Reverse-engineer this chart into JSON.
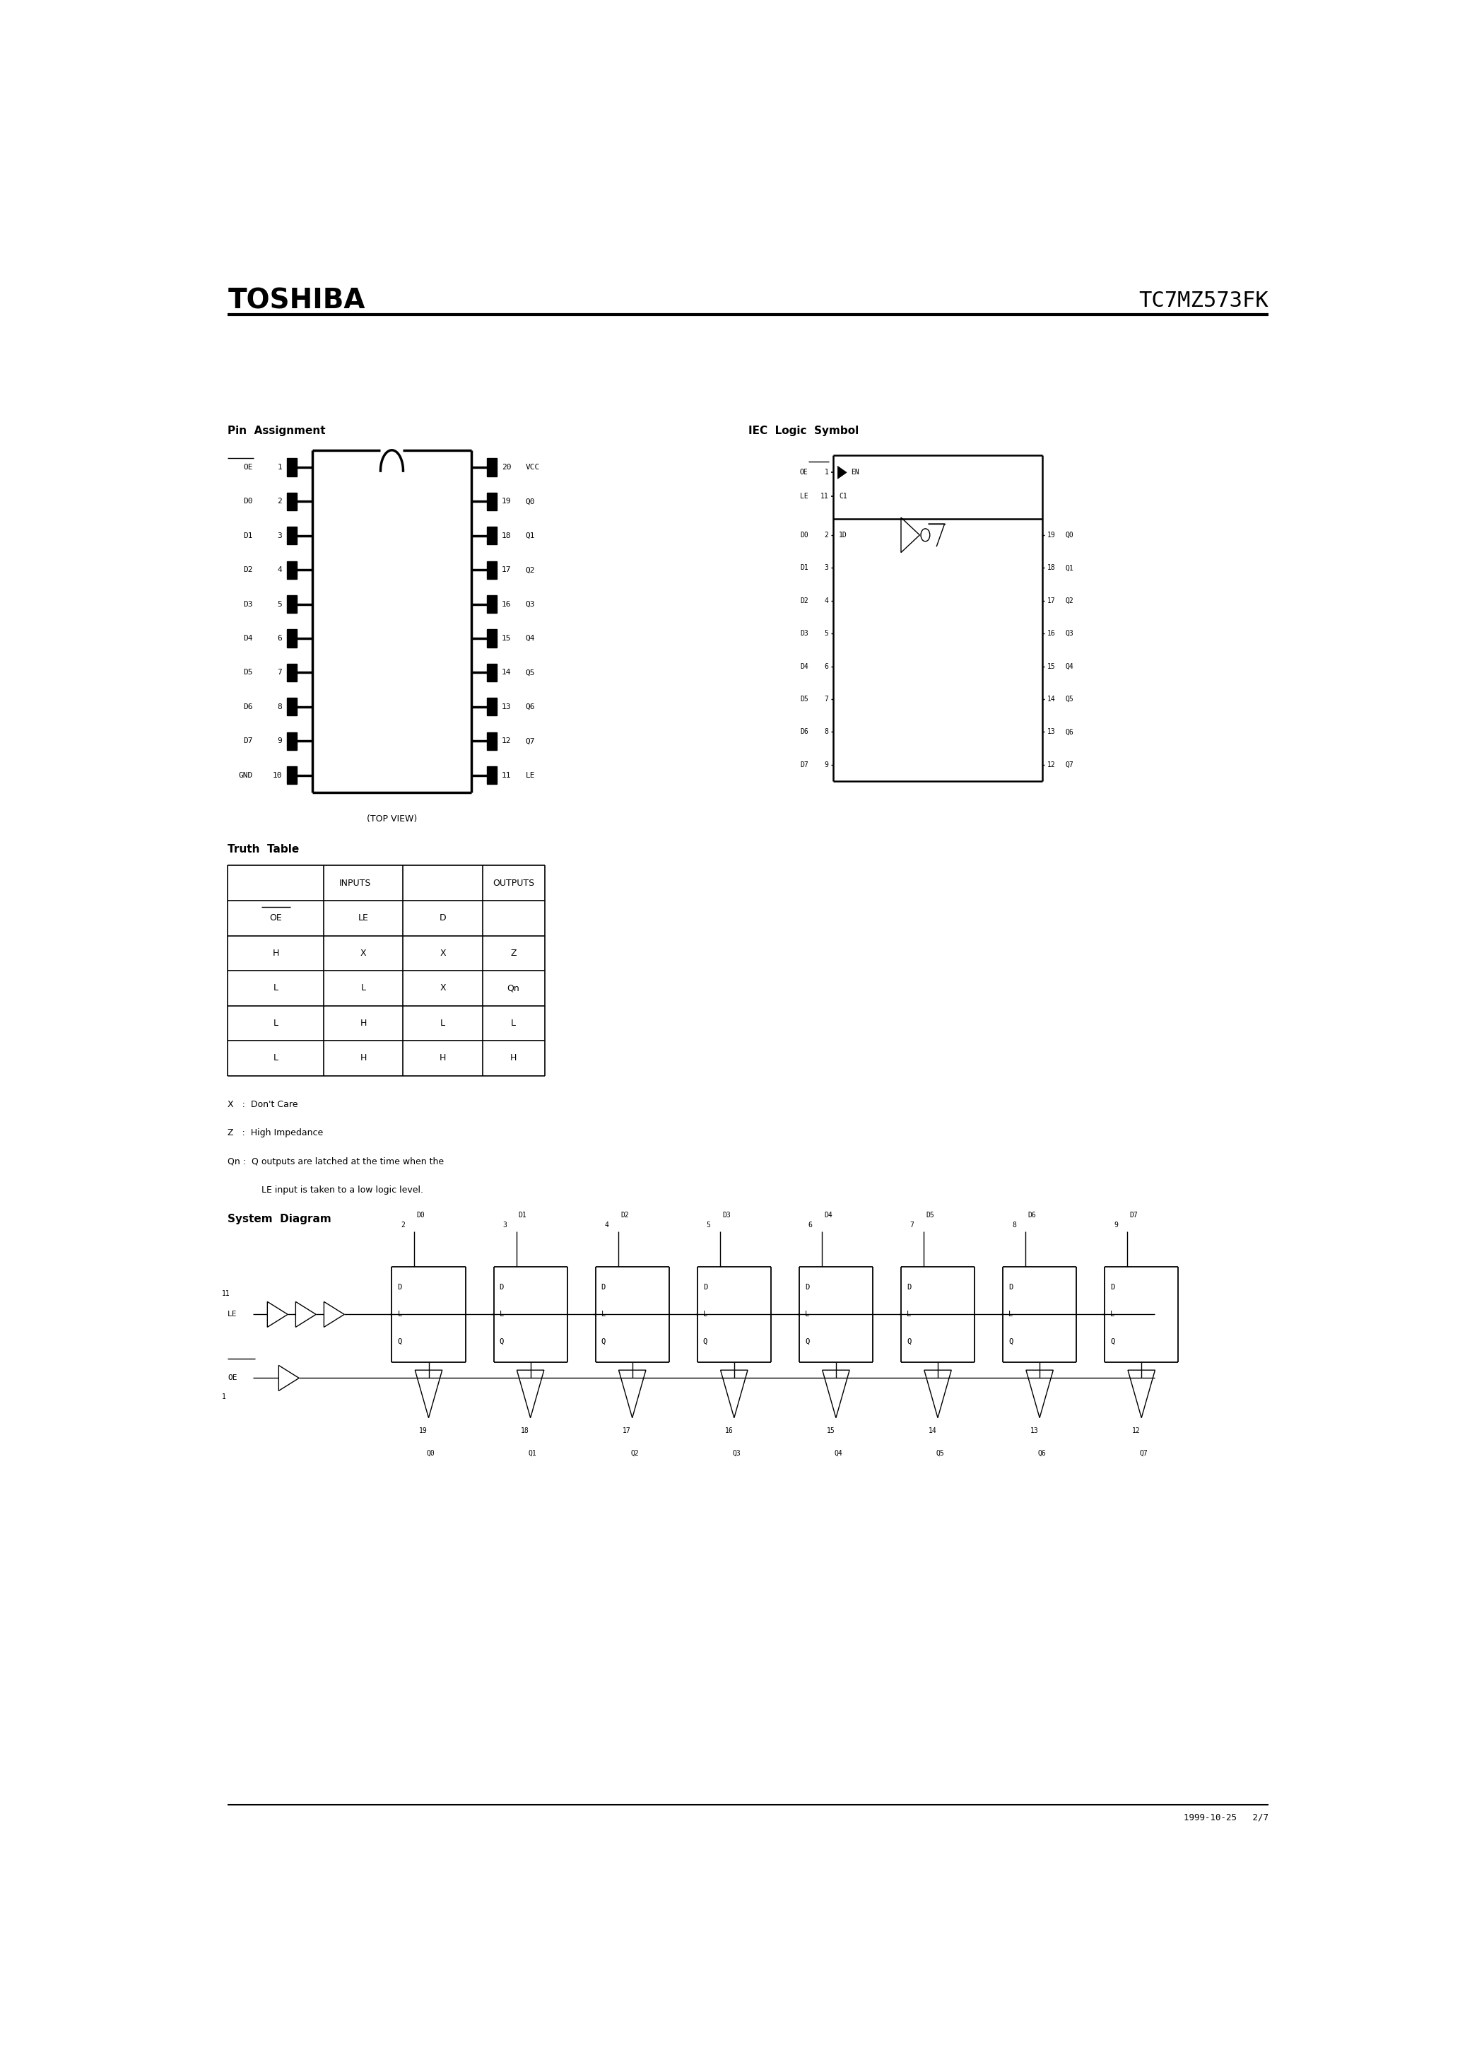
{
  "title_left": "TOSHIBA",
  "title_right": "TC7MZ573FK",
  "footer_text": "1999-10-25   2/7",
  "section1_title": "Pin  Assignment",
  "section2_title": "IEC  Logic  Symbol",
  "section3_title": "Truth  Table",
  "section4_title": "System  Diagram",
  "bg_color": "#ffffff",
  "left_pin_labels": [
    "OE",
    "D0",
    "D1",
    "D2",
    "D3",
    "D4",
    "D5",
    "D6",
    "D7",
    "GND"
  ],
  "left_pin_nums": [
    "1",
    "2",
    "3",
    "4",
    "5",
    "6",
    "7",
    "8",
    "9",
    "10"
  ],
  "right_pin_labels": [
    "VCC",
    "Q0",
    "Q1",
    "Q2",
    "Q3",
    "Q4",
    "Q5",
    "Q6",
    "Q7",
    "LE"
  ],
  "right_pin_nums": [
    "20",
    "19",
    "18",
    "17",
    "16",
    "15",
    "14",
    "13",
    "12",
    "11"
  ],
  "iec_d_labels": [
    "D0",
    "D1",
    "D2",
    "D3",
    "D4",
    "D5",
    "D6",
    "D7"
  ],
  "iec_d_pins": [
    "2",
    "3",
    "4",
    "5",
    "6",
    "7",
    "8",
    "9"
  ],
  "iec_q_labels": [
    "Q0",
    "Q1",
    "Q2",
    "Q3",
    "Q4",
    "Q5",
    "Q6",
    "Q7"
  ],
  "iec_q_pins": [
    "19",
    "18",
    "17",
    "16",
    "15",
    "14",
    "13",
    "12"
  ],
  "table_headers": [
    "OE",
    "LE",
    "D",
    "OUTPUTS"
  ],
  "table_data": [
    [
      "H",
      "X",
      "X",
      "Z"
    ],
    [
      "L",
      "L",
      "X",
      "Qn"
    ],
    [
      "L",
      "H",
      "L",
      "L"
    ],
    [
      "L",
      "H",
      "H",
      "H"
    ]
  ],
  "d_labels": [
    "D0",
    "D1",
    "D2",
    "D3",
    "D4",
    "D5",
    "D6",
    "D7"
  ],
  "d_pins": [
    "2",
    "3",
    "4",
    "5",
    "6",
    "7",
    "8",
    "9"
  ],
  "q_labels": [
    "Q0",
    "Q1",
    "Q2",
    "Q3",
    "Q4",
    "Q5",
    "Q6",
    "Q7"
  ],
  "q_pins": [
    "19",
    "18",
    "17",
    "16",
    "15",
    "14",
    "13",
    "12"
  ]
}
